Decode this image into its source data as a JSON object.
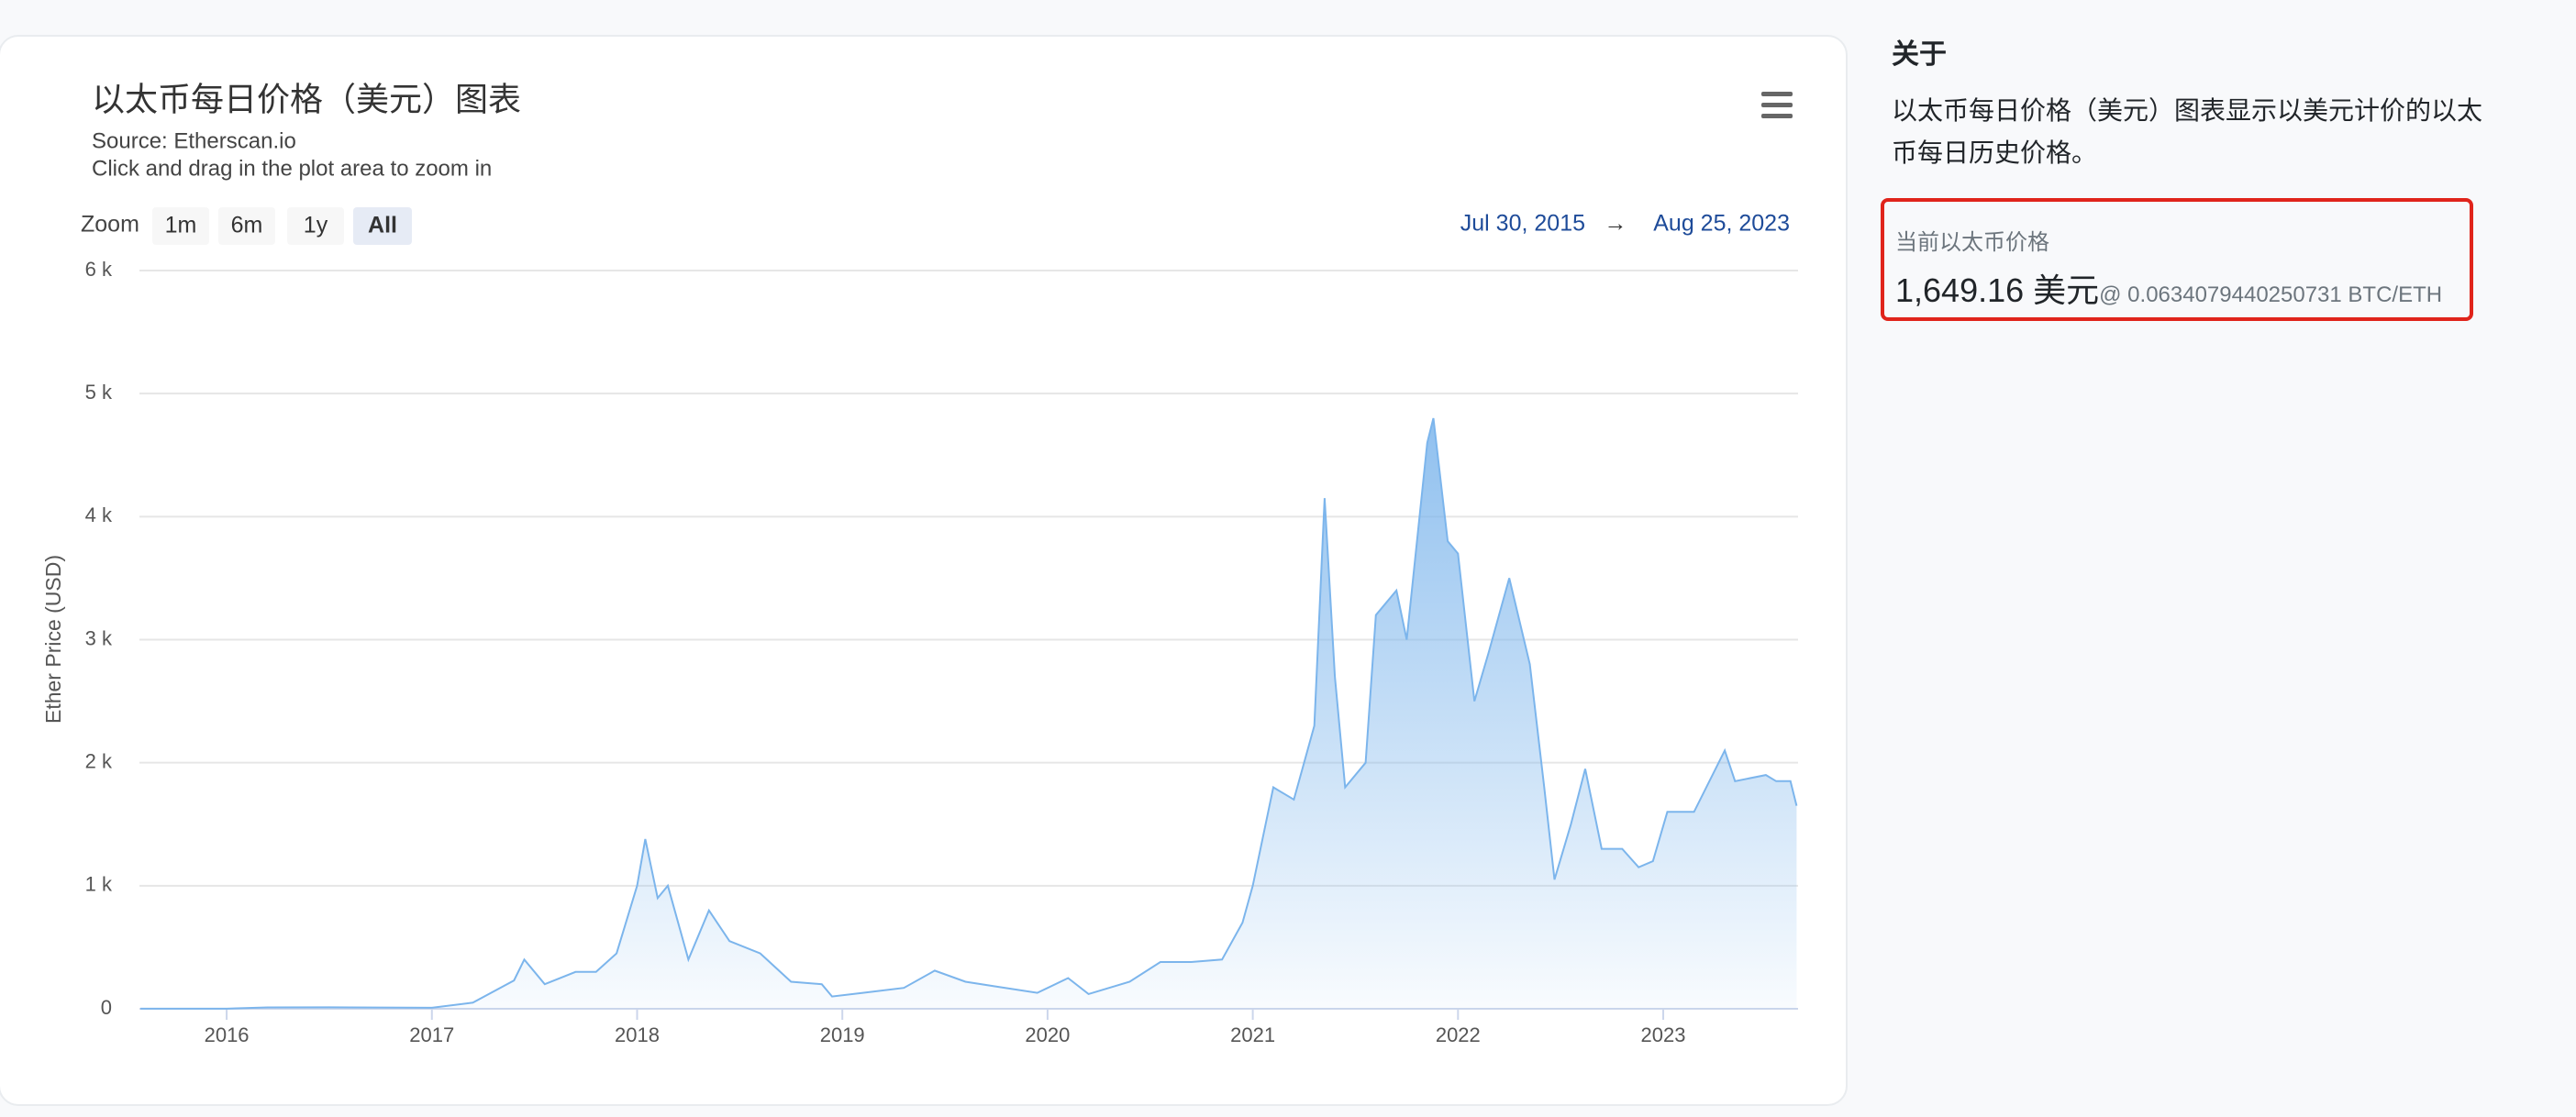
{
  "chart_data": {
    "type": "area",
    "title": "以太币每日价格（美元）图表",
    "source": "Source: Etherscan.io",
    "subtitle": "Click and drag in the plot area to zoom in",
    "y_label": "Ether Price (USD)",
    "color": "#7cb5ec",
    "grid": true,
    "x": [
      2015.58,
      2016.0,
      2016.2,
      2016.5,
      2017.0,
      2017.2,
      2017.4,
      2017.45,
      2017.55,
      2017.7,
      2017.8,
      2017.9,
      2018.0,
      2018.04,
      2018.1,
      2018.15,
      2018.25,
      2018.35,
      2018.45,
      2018.6,
      2018.75,
      2018.9,
      2018.95,
      2019.1,
      2019.3,
      2019.45,
      2019.6,
      2019.75,
      2019.95,
      2020.1,
      2020.2,
      2020.4,
      2020.55,
      2020.7,
      2020.85,
      2020.95,
      2021.0,
      2021.1,
      2021.2,
      2021.3,
      2021.35,
      2021.4,
      2021.45,
      2021.55,
      2021.6,
      2021.7,
      2021.75,
      2021.85,
      2021.88,
      2021.95,
      2022.0,
      2022.08,
      2022.15,
      2022.25,
      2022.35,
      2022.42,
      2022.47,
      2022.55,
      2022.62,
      2022.7,
      2022.8,
      2022.88,
      2022.95,
      2023.02,
      2023.15,
      2023.3,
      2023.35,
      2023.5,
      2023.55,
      2023.62,
      2023.65
    ],
    "values": [
      1,
      1,
      11,
      12,
      8,
      50,
      230,
      400,
      200,
      300,
      300,
      450,
      1000,
      1380,
      900,
      1000,
      400,
      800,
      550,
      450,
      220,
      200,
      100,
      130,
      170,
      310,
      220,
      180,
      130,
      250,
      120,
      220,
      380,
      380,
      400,
      700,
      1000,
      1800,
      1700,
      2300,
      4150,
      2700,
      1800,
      2000,
      3200,
      3400,
      3000,
      4600,
      4800,
      3800,
      3700,
      2500,
      2900,
      3500,
      2800,
      1800,
      1050,
      1500,
      1950,
      1300,
      1300,
      1150,
      1200,
      1600,
      1600,
      2100,
      1850,
      1900,
      1850,
      1850,
      1650
    ],
    "xlim": [
      2015.575,
      2023.657
    ],
    "xticks": [
      2016,
      2017,
      2018,
      2019,
      2020,
      2021,
      2022,
      2023
    ],
    "ylim": [
      0,
      6000
    ],
    "yticks": [
      0,
      {
        "value": 1000,
        "label": "1 k"
      },
      {
        "value": 2000,
        "label": "2 k"
      },
      {
        "value": 3000,
        "label": "3 k"
      },
      {
        "value": 4000,
        "label": "4 k"
      },
      {
        "value": 5000,
        "label": "5 k"
      },
      {
        "value": 6000,
        "label": "6 k"
      }
    ]
  },
  "zoom": {
    "label": "Zoom",
    "buttons": [
      "1m",
      "6m",
      "1y",
      "All"
    ]
  },
  "range": {
    "from": "Jul 30, 2015",
    "arrow": "→",
    "to": "Aug 25, 2023"
  },
  "sidebar": {
    "heading": "关于",
    "description": "以太币每日价格（美元）图表显示以美元计价的以太币每日历史价格。",
    "price_label": "当前以太币价格",
    "price": "1,649.16 美元",
    "btc_rate": "@ 0.0634079440250731 BTC/ETH"
  }
}
